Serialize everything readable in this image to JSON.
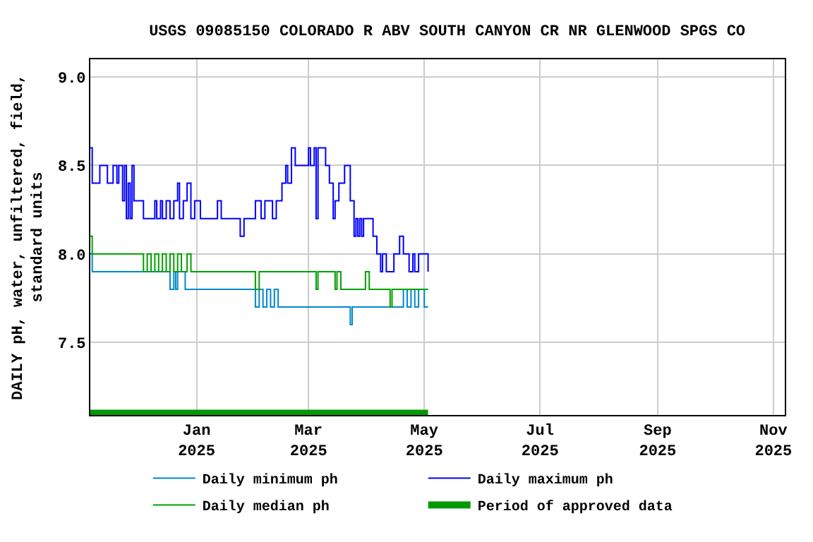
{
  "chart_data": {
    "type": "step",
    "title": "USGS 09085150 COLORADO R ABV SOUTH CANYON CR NR GLENWOOD SPGS CO",
    "ylabel": "DAILY pH, water, unfiltered, field,\nstandard units",
    "xlim": [
      "2024-11-06",
      "2025-11-07"
    ],
    "ylim": [
      7.09,
      9.1
    ],
    "xticks": [
      {
        "value": "2025-01-01",
        "label": "Jan\n2025"
      },
      {
        "value": "2025-03-01",
        "label": "Mar\n2025"
      },
      {
        "value": "2025-05-01",
        "label": "May\n2025"
      },
      {
        "value": "2025-07-01",
        "label": "Jul\n2025"
      },
      {
        "value": "2025-09-01",
        "label": "Sep\n2025"
      },
      {
        "value": "2025-11-01",
        "label": "Nov\n2025"
      }
    ],
    "yticks": [
      {
        "value": 7.5,
        "label": "7.5"
      },
      {
        "value": 8.0,
        "label": "8.0"
      },
      {
        "value": 8.5,
        "label": "8.5"
      },
      {
        "value": 9.0,
        "label": "9.0"
      }
    ],
    "grid": true,
    "legend": "bottom",
    "series": [
      {
        "name": "Daily minimum ph",
        "color": "#0088cc",
        "x": [
          "2024-11-06",
          "2024-11-07",
          "2024-12-18",
          "2024-12-20",
          "2024-12-21",
          "2024-12-22",
          "2024-12-26",
          "2025-02-01",
          "2025-02-03",
          "2025-02-05",
          "2025-02-07",
          "2025-02-09",
          "2025-02-11",
          "2025-02-13",
          "2025-03-23",
          "2025-03-24",
          "2025-04-20",
          "2025-04-22",
          "2025-04-24",
          "2025-04-26",
          "2025-04-28",
          "2025-05-01",
          "2025-05-03"
        ],
        "values": [
          8.0,
          7.9,
          7.8,
          7.9,
          7.8,
          7.9,
          7.8,
          7.7,
          7.8,
          7.7,
          7.8,
          7.7,
          7.8,
          7.7,
          7.6,
          7.7,
          7.8,
          7.7,
          7.8,
          7.7,
          7.8,
          7.7,
          7.7
        ]
      },
      {
        "name": "Daily maximum ph",
        "color": "#0000ff",
        "x": [
          "2024-11-06",
          "2024-11-07",
          "2024-11-11",
          "2024-11-15",
          "2024-11-18",
          "2024-11-20",
          "2024-11-21",
          "2024-11-23",
          "2024-11-24",
          "2024-11-25",
          "2024-11-26",
          "2024-11-27",
          "2024-11-28",
          "2024-11-29",
          "2024-12-04",
          "2024-12-10",
          "2024-12-11",
          "2024-12-13",
          "2024-12-14",
          "2024-12-16",
          "2024-12-18",
          "2024-12-20",
          "2024-12-22",
          "2024-12-23",
          "2024-12-25",
          "2024-12-27",
          "2024-12-29",
          "2024-12-31",
          "2025-01-03",
          "2025-01-12",
          "2025-01-14",
          "2025-01-24",
          "2025-01-26",
          "2025-02-01",
          "2025-02-04",
          "2025-02-06",
          "2025-02-10",
          "2025-02-12",
          "2025-02-15",
          "2025-02-17",
          "2025-02-18",
          "2025-02-20",
          "2025-02-22",
          "2025-03-01",
          "2025-03-02",
          "2025-03-04",
          "2025-03-05",
          "2025-03-06",
          "2025-03-10",
          "2025-03-12",
          "2025-03-14",
          "2025-03-15",
          "2025-03-17",
          "2025-03-20",
          "2025-03-23",
          "2025-03-25",
          "2025-03-26",
          "2025-03-27",
          "2025-03-28",
          "2025-03-29",
          "2025-03-30",
          "2025-04-04",
          "2025-04-06",
          "2025-04-08",
          "2025-04-09",
          "2025-04-11",
          "2025-04-15",
          "2025-04-18",
          "2025-04-20",
          "2025-04-23",
          "2025-04-25",
          "2025-04-26",
          "2025-04-28",
          "2025-05-03"
        ],
        "values": [
          8.6,
          8.4,
          8.5,
          8.4,
          8.5,
          8.4,
          8.5,
          8.3,
          8.5,
          8.2,
          8.4,
          8.2,
          8.5,
          8.3,
          8.2,
          8.3,
          8.2,
          8.3,
          8.2,
          8.3,
          8.2,
          8.3,
          8.4,
          8.2,
          8.3,
          8.4,
          8.2,
          8.3,
          8.2,
          8.3,
          8.2,
          8.1,
          8.2,
          8.3,
          8.2,
          8.3,
          8.2,
          8.3,
          8.4,
          8.5,
          8.4,
          8.6,
          8.5,
          8.6,
          8.5,
          8.6,
          8.2,
          8.6,
          8.5,
          8.4,
          8.2,
          8.3,
          8.4,
          8.5,
          8.3,
          8.1,
          8.2,
          8.1,
          8.2,
          8.1,
          8.2,
          8.1,
          8.0,
          7.9,
          8.0,
          7.9,
          8.0,
          8.1,
          8.0,
          7.9,
          8.0,
          7.9,
          8.0,
          7.9
        ]
      },
      {
        "name": "Daily median ph",
        "color": "#00a000",
        "x": [
          "2024-11-06",
          "2024-11-07",
          "2024-12-04",
          "2024-12-06",
          "2024-12-08",
          "2024-12-10",
          "2024-12-12",
          "2024-12-14",
          "2024-12-16",
          "2024-12-18",
          "2024-12-20",
          "2024-12-22",
          "2024-12-24",
          "2024-12-27",
          "2024-12-29",
          "2025-02-01",
          "2025-02-03",
          "2025-03-05",
          "2025-03-06",
          "2025-03-15",
          "2025-03-16",
          "2025-03-18",
          "2025-03-31",
          "2025-04-02",
          "2025-04-13",
          "2025-04-14",
          "2025-05-03"
        ],
        "values": [
          8.1,
          8.0,
          7.9,
          8.0,
          7.9,
          8.0,
          7.9,
          8.0,
          7.9,
          8.0,
          7.9,
          8.0,
          7.9,
          8.0,
          7.9,
          7.8,
          7.9,
          7.8,
          7.9,
          7.8,
          7.9,
          7.8,
          7.9,
          7.8,
          7.7,
          7.8,
          7.8
        ]
      },
      {
        "name": "Period of approved data",
        "type": "line",
        "color": "#009900",
        "x": [
          "2024-11-06",
          "2025-05-03"
        ],
        "values": [
          7.1,
          7.1
        ]
      }
    ]
  }
}
